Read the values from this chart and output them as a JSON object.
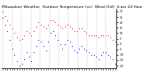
{
  "title": "Milwaukee Weather  Outdoor Temperature (vs)  Wind Chill  (Last 24 Hours)",
  "temp": [
    30,
    26,
    22,
    18,
    14,
    10,
    6,
    4,
    5,
    8,
    12,
    10,
    8,
    12,
    16,
    20,
    18,
    16,
    14,
    18,
    22,
    22,
    20,
    18,
    16,
    14,
    16,
    18,
    16,
    14,
    12,
    12,
    14,
    14,
    12,
    10,
    8,
    8,
    8,
    8,
    6,
    8,
    8,
    8,
    8,
    6,
    4,
    2
  ],
  "windchill": [
    24,
    18,
    12,
    4,
    -4,
    -10,
    -16,
    -20,
    -18,
    -14,
    -8,
    -12,
    -16,
    -8,
    -2,
    4,
    2,
    -2,
    -6,
    2,
    10,
    12,
    8,
    4,
    0,
    -4,
    0,
    4,
    2,
    -2,
    -6,
    -8,
    -4,
    -2,
    -4,
    -6,
    -8,
    -10,
    -10,
    -12,
    -14,
    -10,
    -8,
    -8,
    -10,
    -12,
    -14,
    -18
  ],
  "temp_color": "#ff0000",
  "windchill_color": "#0000ff",
  "bg_color": "#ffffff",
  "plot_bg": "#ffffff",
  "ylim": [
    -22,
    32
  ],
  "ytick_values": [
    30,
    25,
    20,
    15,
    10,
    5,
    0,
    -5,
    -10,
    -15,
    -20
  ],
  "grid_color": "#999999",
  "title_fontsize": 3.2,
  "n_gridlines": 13
}
